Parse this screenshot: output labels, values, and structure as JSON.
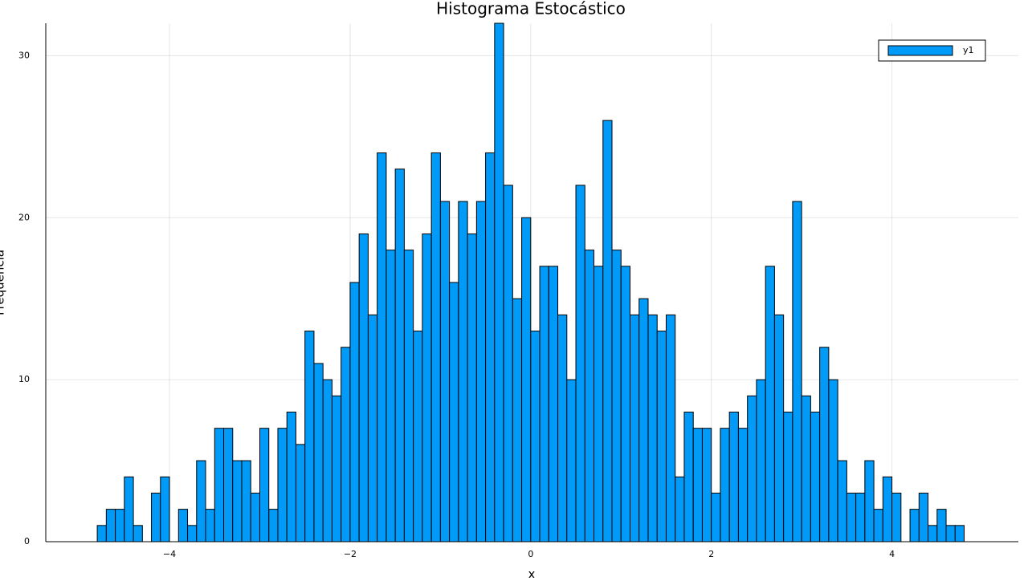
{
  "chart_data": {
    "type": "histogram",
    "title": "Histograma Estocástico",
    "xlabel": "x",
    "ylabel": "Frequência",
    "series": [
      {
        "name": "y1",
        "color": "#009af9",
        "values": [
          1,
          2,
          2,
          4,
          1,
          0,
          3,
          4,
          0,
          2,
          1,
          5,
          2,
          7,
          7,
          5,
          5,
          3,
          7,
          2,
          7,
          8,
          6,
          13,
          11,
          10,
          9,
          12,
          16,
          19,
          14,
          24,
          18,
          23,
          18,
          13,
          19,
          24,
          21,
          16,
          21,
          19,
          21,
          24,
          32,
          22,
          15,
          20,
          13,
          17,
          17,
          14,
          10,
          22,
          18,
          17,
          26,
          18,
          17,
          14,
          15,
          14,
          13,
          14,
          4,
          8,
          7,
          7,
          3,
          7,
          8,
          7,
          9,
          10,
          17,
          14,
          8,
          21,
          9,
          8,
          12,
          10,
          5,
          3,
          3,
          5,
          2,
          4,
          3,
          0,
          2,
          3,
          1,
          2,
          1,
          1
        ]
      }
    ],
    "bins": [
      -4.8,
      -4.7,
      -4.6,
      -4.5,
      -4.4,
      -4.3,
      -4.2,
      -4.1,
      -4.0,
      -3.9,
      -3.8,
      -3.7,
      -3.6,
      -3.5,
      -3.4,
      -3.3,
      -3.2,
      -3.1,
      -3.0,
      -2.9,
      -2.8,
      -2.7,
      -2.6,
      -2.5,
      -2.4,
      -2.3,
      -2.2,
      -2.1,
      -2.0,
      -1.9,
      -1.8,
      -1.7,
      -1.6,
      -1.5,
      -1.4,
      -1.3,
      -1.2,
      -1.1,
      -1.0,
      -0.9,
      -0.8,
      -0.7,
      -0.6,
      -0.5,
      -0.4,
      -0.3,
      -0.2,
      -0.1,
      0.0,
      0.1,
      0.2,
      0.3,
      0.4,
      0.5,
      0.6,
      0.7,
      0.8,
      0.9,
      1.0,
      1.1,
      1.2,
      1.3,
      1.4,
      1.5,
      1.6,
      1.7,
      1.8,
      1.9,
      2.0,
      2.1,
      2.2,
      2.3,
      2.4,
      2.5,
      2.6,
      2.7,
      2.8,
      2.9,
      3.0,
      3.1,
      3.2,
      3.3,
      3.4,
      3.5,
      3.6,
      3.7,
      3.8,
      3.9,
      4.0,
      4.1,
      4.2,
      4.3,
      4.4,
      4.5,
      4.6,
      4.7,
      4.8
    ],
    "xlim": [
      -5.37,
      5.4
    ],
    "ylim": [
      0,
      32
    ],
    "xticks": [
      {
        "value": -4,
        "label": "−4"
      },
      {
        "value": -2,
        "label": "−2"
      },
      0,
      2,
      4
    ],
    "yticks": [
      0,
      10,
      20,
      30
    ],
    "grid": true,
    "legend": "top-right"
  }
}
